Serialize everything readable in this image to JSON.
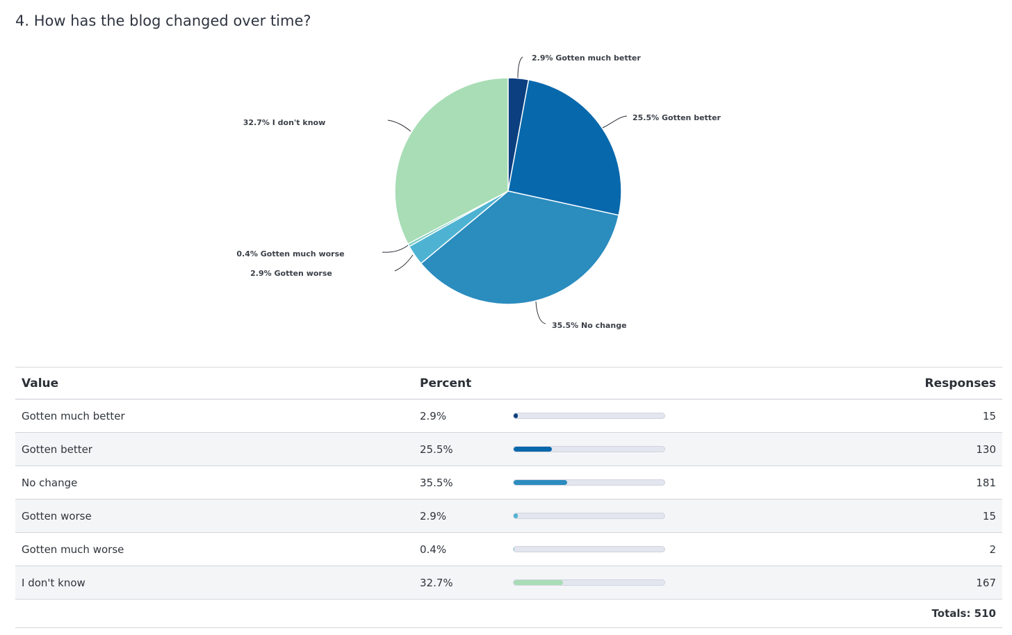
{
  "question": {
    "title": "4. How has the blog changed over time?"
  },
  "chart_data": {
    "type": "pie",
    "title": "4. How has the blog changed over time?",
    "slices": [
      {
        "label": "Gotten much better",
        "percent": 2.9,
        "percent_label": "2.9%",
        "responses": 15,
        "color": "#0b3f7f"
      },
      {
        "label": "Gotten better",
        "percent": 25.5,
        "percent_label": "25.5%",
        "responses": 130,
        "color": "#0868ac"
      },
      {
        "label": "No change",
        "percent": 35.5,
        "percent_label": "35.5%",
        "responses": 181,
        "color": "#2b8cbe"
      },
      {
        "label": "Gotten worse",
        "percent": 2.9,
        "percent_label": "2.9%",
        "responses": 15,
        "color": "#4eb3d3"
      },
      {
        "label": "Gotten much worse",
        "percent": 0.4,
        "percent_label": "0.4%",
        "responses": 2,
        "color": "#7bccc4"
      },
      {
        "label": "I don't know",
        "percent": 32.7,
        "percent_label": "32.7%",
        "responses": 167,
        "color": "#a8ddb5"
      }
    ]
  },
  "table": {
    "headers": {
      "value": "Value",
      "percent": "Percent",
      "responses": "Responses"
    },
    "totals_label": "Totals: 510"
  }
}
